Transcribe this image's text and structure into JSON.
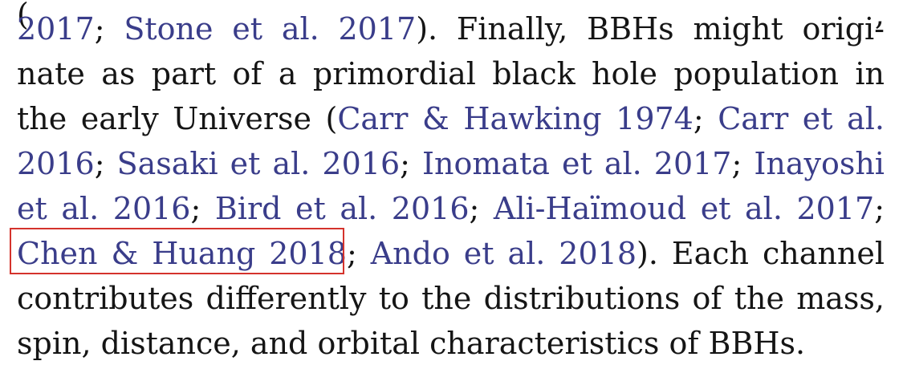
{
  "text": {
    "line0": "(                                                        ,",
    "line1": {
      "c1": "2017",
      "t1": "; ",
      "c2": "Stone et al. 2017",
      "t2": ").  Finally, BBHs might origi-"
    },
    "line2": {
      "t1": "nate as part of a primordial black hole population in"
    },
    "line3": {
      "t1": "the early Universe (",
      "c1": "Carr & Hawking 1974",
      "t2": "; ",
      "c2": "Carr et al."
    },
    "line4": {
      "c1": "2016",
      "t1": "; ",
      "c2": "Sasaki et al. 2016",
      "t2": "; ",
      "c3": "Inomata et al. 2017",
      "t3": "; ",
      "c4": "Inayoshi"
    },
    "line5": {
      "c1": "et al. 2016",
      "t1": "; ",
      "c2": "Bird et al. 2016",
      "t2": "; ",
      "c3": "Ali-Haïmoud et al. 2017",
      "t3": ";"
    },
    "line6": {
      "c1": "Chen & Huang 2018",
      "t1": "; ",
      "c2": "Ando et al. 2018",
      "t2": ").  Each channel"
    },
    "line7": {
      "t1": "contributes differently to the distributions of the mass,"
    },
    "line8": {
      "t1": "spin, distance, and orbital characteristics of BBHs."
    }
  },
  "colors": {
    "body_text": "#151515",
    "citation_link": "#3a3d8a",
    "highlight_box": "#d4332c"
  }
}
